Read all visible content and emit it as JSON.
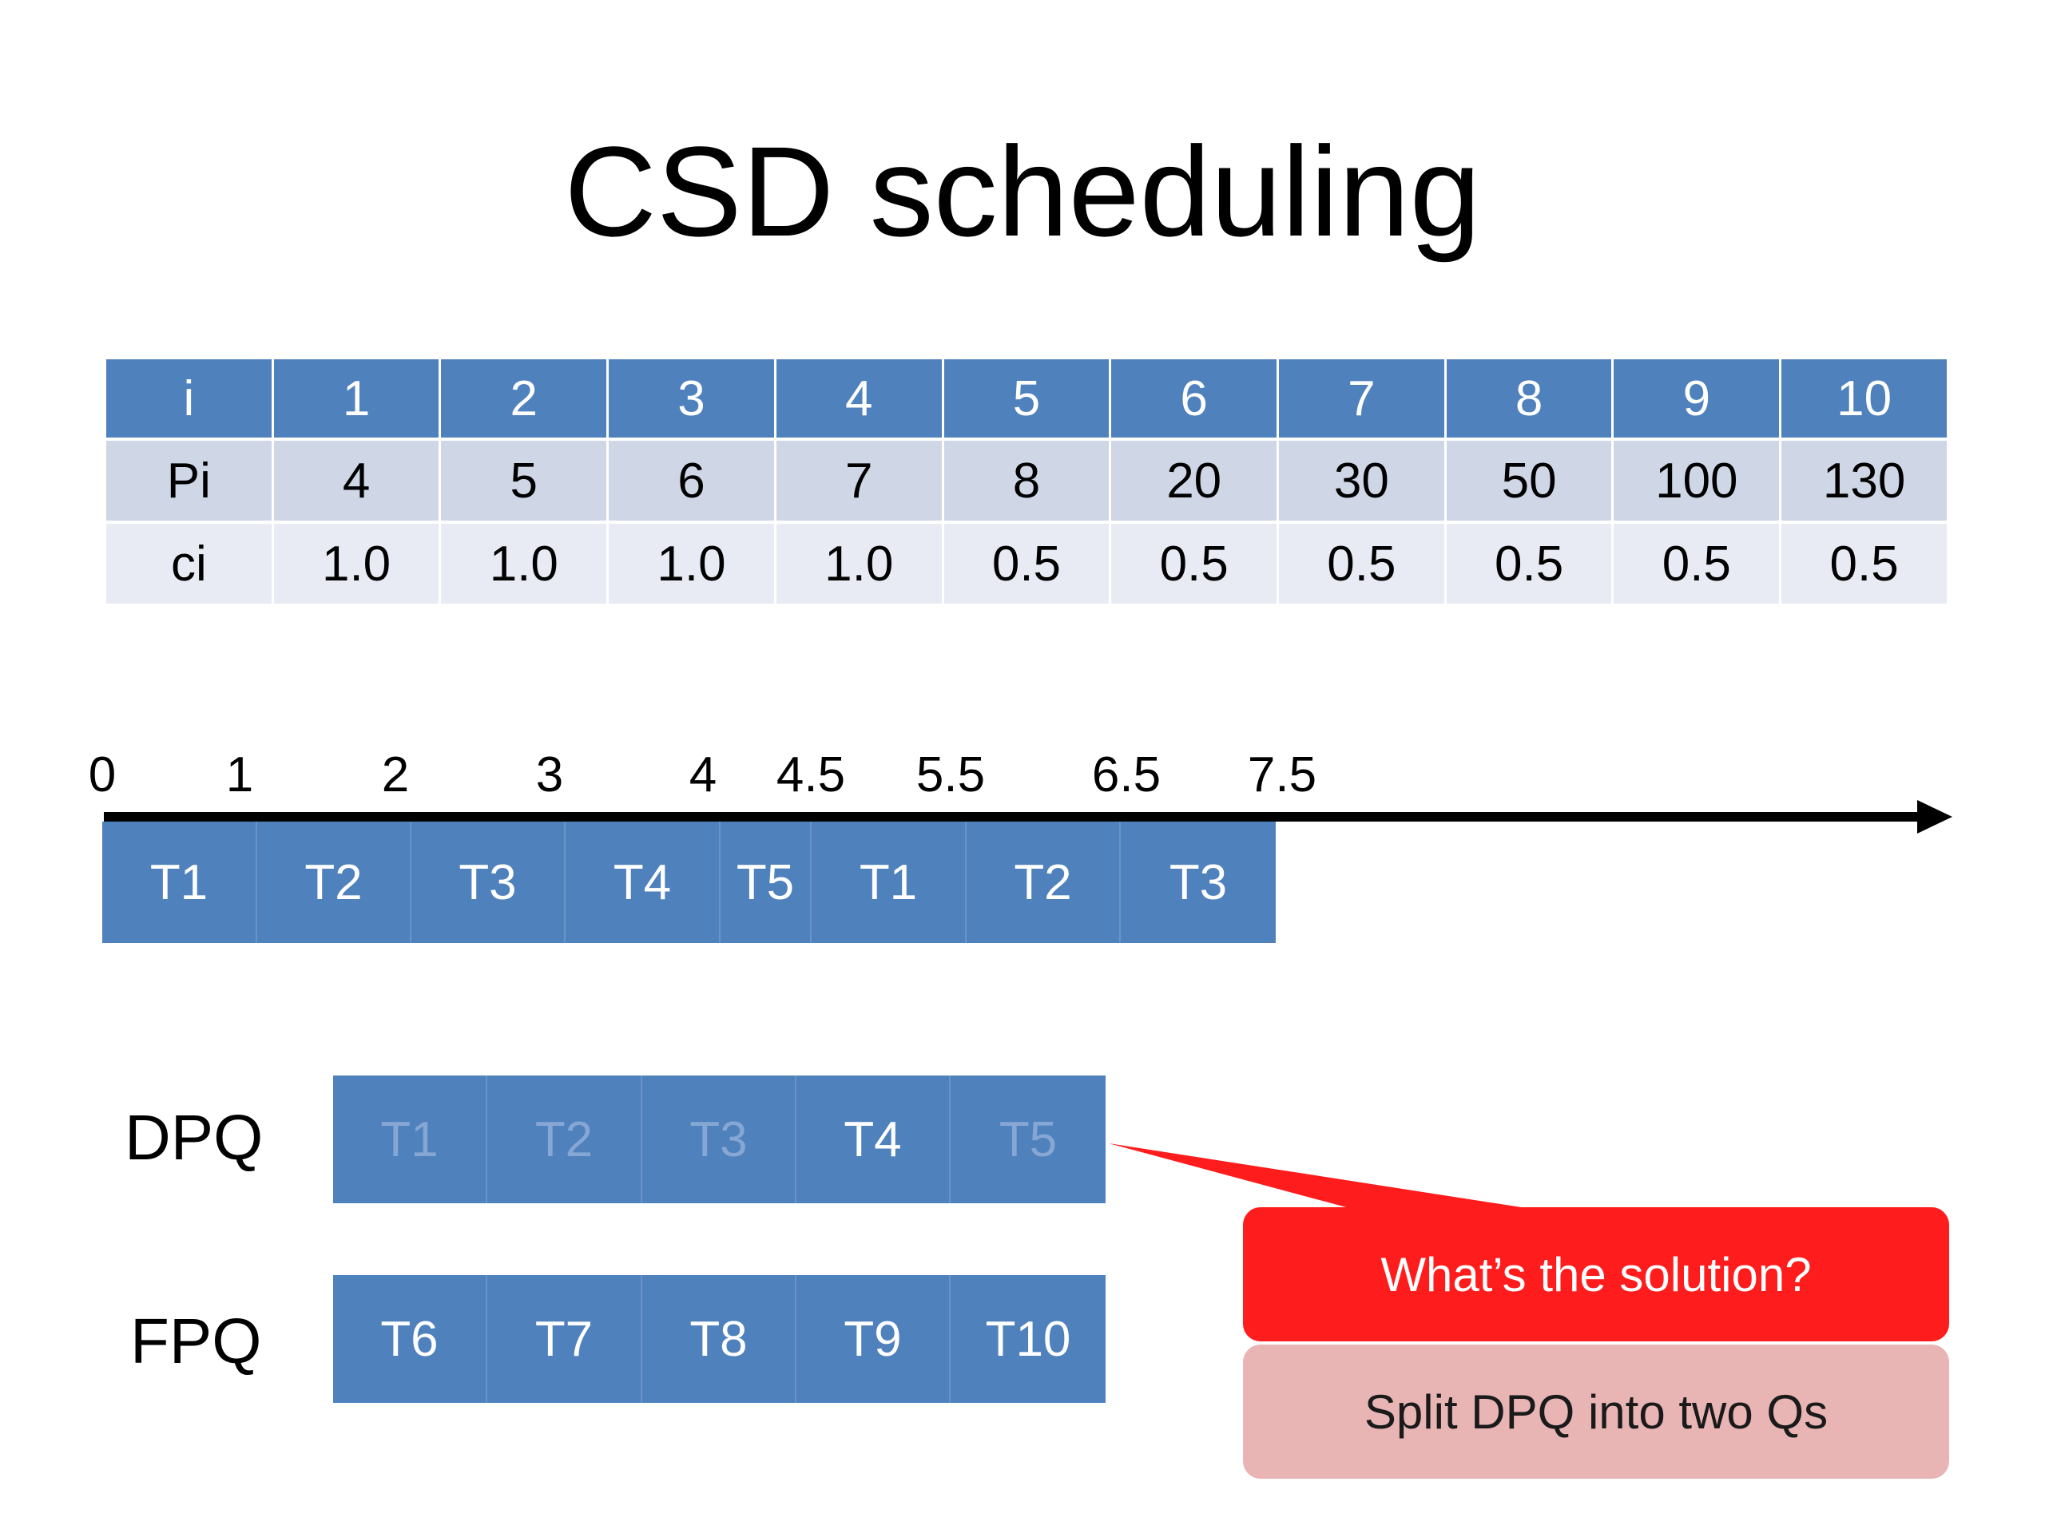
{
  "title": "CSD scheduling",
  "table": {
    "header": [
      "i",
      "1",
      "2",
      "3",
      "4",
      "5",
      "6",
      "7",
      "8",
      "9",
      "10"
    ],
    "period_row": [
      "Pi",
      "4",
      "5",
      "6",
      "7",
      "8",
      "20",
      "30",
      "50",
      "100",
      "130"
    ],
    "cost_row": [
      "ci",
      "1.0",
      "1.0",
      "1.0",
      "1.0",
      "0.5",
      "0.5",
      "0.5",
      "0.5",
      "0.5",
      "0.5"
    ]
  },
  "timeline": {
    "ticks": [
      "0",
      "1",
      "2",
      "3",
      "4",
      "4.5",
      "5.5",
      "6.5",
      "7.5"
    ],
    "segments": [
      "T1",
      "T2",
      "T3",
      "T4",
      "T5",
      "T1",
      "T2",
      "T3"
    ]
  },
  "queues": {
    "dpq": {
      "label": "DPQ",
      "tasks": [
        "T1",
        "T2",
        "T3",
        "T4",
        "T5"
      ],
      "active": [
        false,
        false,
        false,
        true,
        false
      ]
    },
    "fpq": {
      "label": "FPQ",
      "tasks": [
        "T6",
        "T7",
        "T8",
        "T9",
        "T10"
      ]
    }
  },
  "callout": {
    "question": "What’s the solution?",
    "answer": "Split DPQ into two Qs"
  },
  "colors": {
    "blue": "#4f81bd",
    "red": "#ff1c1c",
    "pink": "#e8b4b4"
  }
}
